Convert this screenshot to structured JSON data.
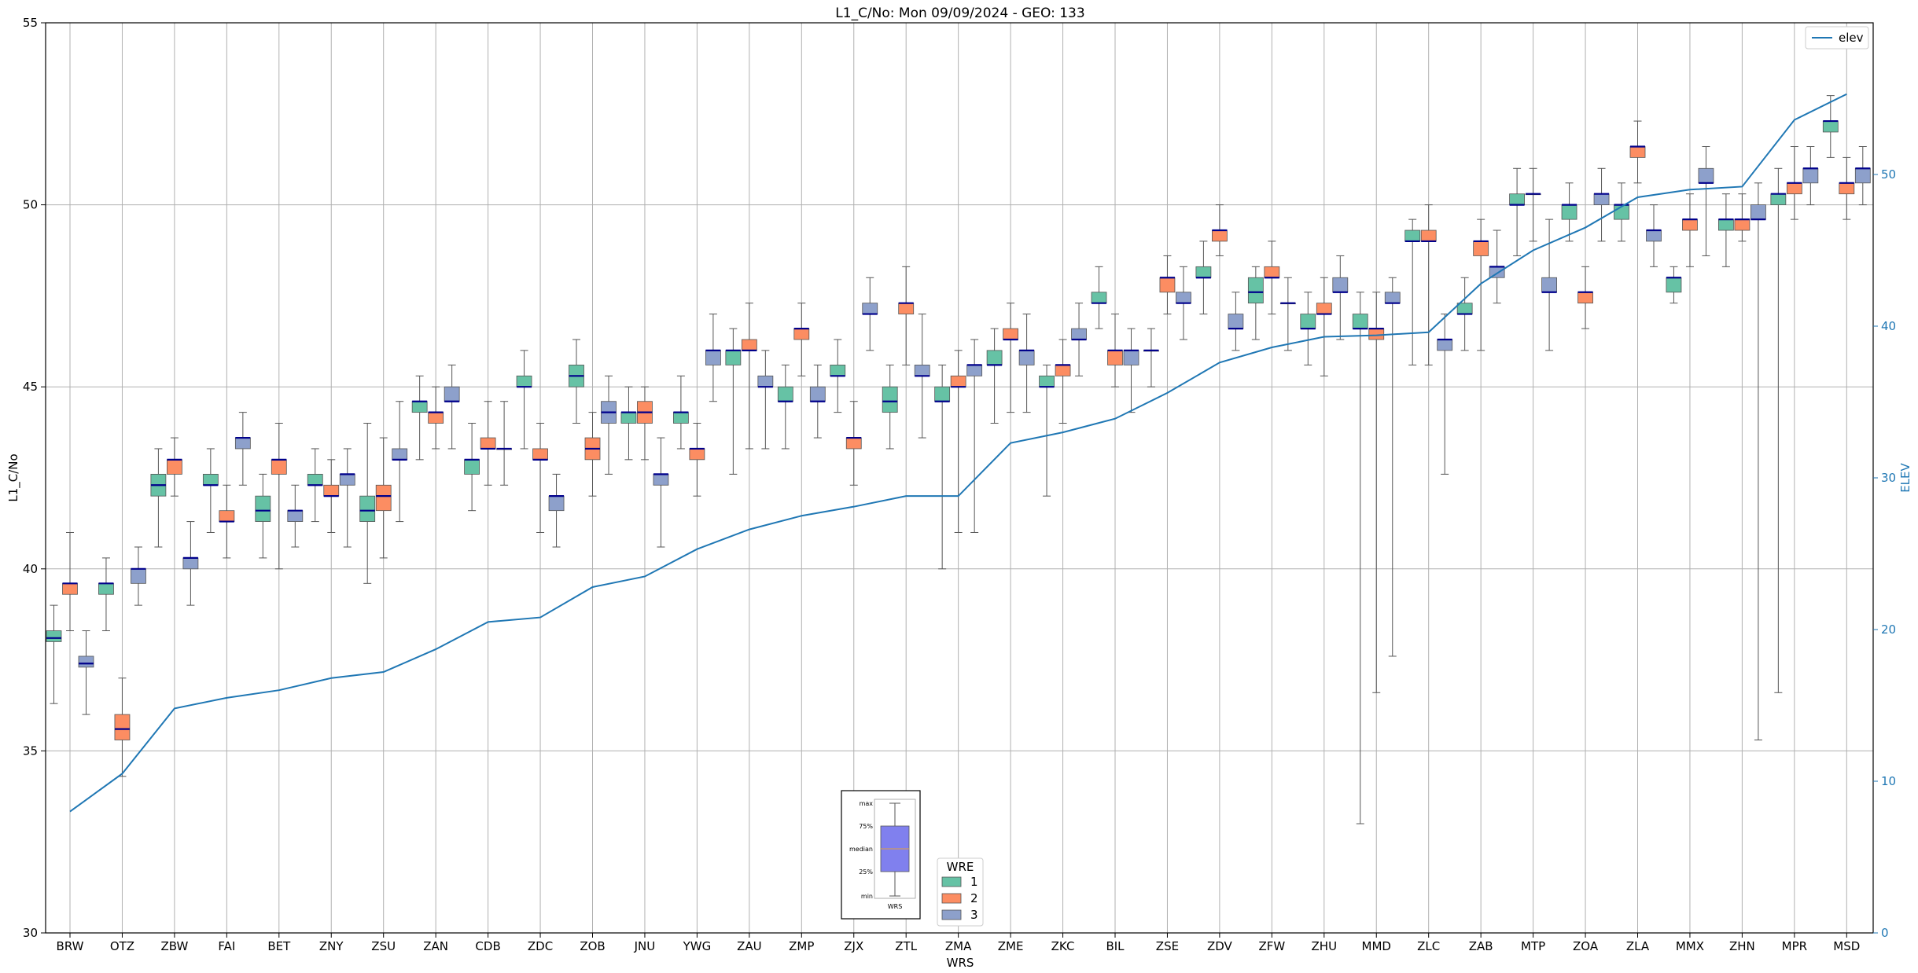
{
  "chart_data": {
    "type": "box",
    "title": "L1_C/No: Mon 09/09/2024 - GEO: 133",
    "xlabel": "WRS",
    "ylabel": "L1_C/No",
    "ylabel_right": "ELEV",
    "ylim": [
      30,
      55
    ],
    "ylim_right": [
      0,
      60
    ],
    "yticks": [
      "30",
      "35",
      "40",
      "45",
      "50",
      "55"
    ],
    "yticks_right": [
      "0",
      "10",
      "20",
      "30",
      "40",
      "50"
    ],
    "categories": [
      "BRW",
      "OTZ",
      "ZBW",
      "FAI",
      "BET",
      "ZNY",
      "ZSU",
      "ZAN",
      "CDB",
      "ZDC",
      "ZOB",
      "JNU",
      "YWG",
      "ZAU",
      "ZMP",
      "ZJX",
      "ZTL",
      "ZMA",
      "ZME",
      "ZKC",
      "BIL",
      "ZSE",
      "ZDV",
      "ZFW",
      "ZHU",
      "MMD",
      "ZLC",
      "ZAB",
      "MTP",
      "ZOA",
      "ZLA",
      "MMX",
      "ZHN",
      "MPR",
      "MSD"
    ],
    "colors": {
      "WRE 1": "#66c2a5",
      "WRE 2": "#fc8d62",
      "WRE 3": "#8da0cb",
      "median": "#00008b",
      "elev": "#1f77b4",
      "grid": "#b0b0b0",
      "whisker": "#555555"
    },
    "legend": {
      "title": "WRE",
      "entries": [
        "1",
        "2",
        "3"
      ],
      "placement": "bottom-center"
    },
    "elev_legend": {
      "label": "elev",
      "placement": "top-right"
    },
    "inset_key": {
      "labels": [
        "max",
        "75%",
        "median",
        "25%",
        "min"
      ],
      "xlabel": "WRS",
      "placement": "bottom-center"
    },
    "boxes": [
      {
        "station": "BRW",
        "wre": 1,
        "min": 36.3,
        "q1": 38.0,
        "median": 38.1,
        "q3": 38.3,
        "max": 39.0
      },
      {
        "station": "BRW",
        "wre": 2,
        "min": 38.3,
        "q1": 39.3,
        "median": 39.6,
        "q3": 39.6,
        "max": 41.0
      },
      {
        "station": "BRW",
        "wre": 3,
        "min": 36.0,
        "q1": 37.3,
        "median": 37.4,
        "q3": 37.6,
        "max": 38.3
      },
      {
        "station": "OTZ",
        "wre": 1,
        "min": 38.3,
        "q1": 39.3,
        "median": 39.6,
        "q3": 39.6,
        "max": 40.3
      },
      {
        "station": "OTZ",
        "wre": 2,
        "min": 34.3,
        "q1": 35.3,
        "median": 35.6,
        "q3": 36.0,
        "max": 37.0
      },
      {
        "station": "OTZ",
        "wre": 3,
        "min": 39.0,
        "q1": 39.6,
        "median": 40.0,
        "q3": 40.0,
        "max": 40.6
      },
      {
        "station": "ZBW",
        "wre": 1,
        "min": 40.6,
        "q1": 42.0,
        "median": 42.3,
        "q3": 42.6,
        "max": 43.3
      },
      {
        "station": "ZBW",
        "wre": 2,
        "min": 42.0,
        "q1": 42.6,
        "median": 43.0,
        "q3": 43.0,
        "max": 43.6
      },
      {
        "station": "ZBW",
        "wre": 3,
        "min": 39.0,
        "q1": 40.0,
        "median": 40.3,
        "q3": 40.3,
        "max": 41.3
      },
      {
        "station": "FAI",
        "wre": 1,
        "min": 41.0,
        "q1": 42.3,
        "median": 42.3,
        "q3": 42.6,
        "max": 43.3
      },
      {
        "station": "FAI",
        "wre": 2,
        "min": 40.3,
        "q1": 41.3,
        "median": 41.3,
        "q3": 41.6,
        "max": 42.3
      },
      {
        "station": "FAI",
        "wre": 3,
        "min": 42.3,
        "q1": 43.3,
        "median": 43.6,
        "q3": 43.6,
        "max": 44.3
      },
      {
        "station": "BET",
        "wre": 1,
        "min": 40.3,
        "q1": 41.3,
        "median": 41.6,
        "q3": 42.0,
        "max": 42.6
      },
      {
        "station": "BET",
        "wre": 2,
        "min": 40.0,
        "q1": 42.6,
        "median": 43.0,
        "q3": 43.0,
        "max": 44.0
      },
      {
        "station": "BET",
        "wre": 3,
        "min": 40.6,
        "q1": 41.3,
        "median": 41.6,
        "q3": 41.6,
        "max": 42.3
      },
      {
        "station": "ZNY",
        "wre": 1,
        "min": 41.3,
        "q1": 42.3,
        "median": 42.3,
        "q3": 42.6,
        "max": 43.3
      },
      {
        "station": "ZNY",
        "wre": 2,
        "min": 41.0,
        "q1": 42.0,
        "median": 42.0,
        "q3": 42.3,
        "max": 43.0
      },
      {
        "station": "ZNY",
        "wre": 3,
        "min": 40.6,
        "q1": 42.3,
        "median": 42.6,
        "q3": 42.6,
        "max": 43.3
      },
      {
        "station": "ZSU",
        "wre": 1,
        "min": 39.6,
        "q1": 41.3,
        "median": 41.6,
        "q3": 42.0,
        "max": 44.0
      },
      {
        "station": "ZSU",
        "wre": 2,
        "min": 40.3,
        "q1": 41.6,
        "median": 42.0,
        "q3": 42.3,
        "max": 43.6
      },
      {
        "station": "ZSU",
        "wre": 3,
        "min": 41.3,
        "q1": 43.0,
        "median": 43.0,
        "q3": 43.3,
        "max": 44.6
      },
      {
        "station": "ZAN",
        "wre": 1,
        "min": 43.0,
        "q1": 44.3,
        "median": 44.6,
        "q3": 44.6,
        "max": 45.3
      },
      {
        "station": "ZAN",
        "wre": 2,
        "min": 43.3,
        "q1": 44.0,
        "median": 44.3,
        "q3": 44.3,
        "max": 45.0
      },
      {
        "station": "ZAN",
        "wre": 3,
        "min": 43.3,
        "q1": 44.6,
        "median": 44.6,
        "q3": 45.0,
        "max": 45.6
      },
      {
        "station": "CDB",
        "wre": 1,
        "min": 41.6,
        "q1": 42.6,
        "median": 43.0,
        "q3": 43.0,
        "max": 44.0
      },
      {
        "station": "CDB",
        "wre": 2,
        "min": 42.3,
        "q1": 43.3,
        "median": 43.3,
        "q3": 43.6,
        "max": 44.6
      },
      {
        "station": "CDB",
        "wre": 3,
        "min": 42.3,
        "q1": 43.3,
        "median": 43.3,
        "q3": 43.3,
        "max": 44.6
      },
      {
        "station": "ZDC",
        "wre": 1,
        "min": 43.3,
        "q1": 45.0,
        "median": 45.0,
        "q3": 45.3,
        "max": 46.0
      },
      {
        "station": "ZDC",
        "wre": 2,
        "min": 41.0,
        "q1": 43.0,
        "median": 43.0,
        "q3": 43.3,
        "max": 44.0
      },
      {
        "station": "ZDC",
        "wre": 3,
        "min": 40.6,
        "q1": 41.6,
        "median": 42.0,
        "q3": 42.0,
        "max": 42.6
      },
      {
        "station": "ZOB",
        "wre": 1,
        "min": 44.0,
        "q1": 45.0,
        "median": 45.3,
        "q3": 45.6,
        "max": 46.3
      },
      {
        "station": "ZOB",
        "wre": 2,
        "min": 42.0,
        "q1": 43.0,
        "median": 43.3,
        "q3": 43.6,
        "max": 44.3
      },
      {
        "station": "ZOB",
        "wre": 3,
        "min": 42.6,
        "q1": 44.0,
        "median": 44.3,
        "q3": 44.6,
        "max": 45.3
      },
      {
        "station": "JNU",
        "wre": 1,
        "min": 43.0,
        "q1": 44.0,
        "median": 44.3,
        "q3": 44.3,
        "max": 45.0
      },
      {
        "station": "JNU",
        "wre": 2,
        "min": 43.0,
        "q1": 44.0,
        "median": 44.3,
        "q3": 44.6,
        "max": 45.0
      },
      {
        "station": "JNU",
        "wre": 3,
        "min": 40.6,
        "q1": 42.3,
        "median": 42.6,
        "q3": 42.6,
        "max": 43.6
      },
      {
        "station": "YWG",
        "wre": 1,
        "min": 43.3,
        "q1": 44.0,
        "median": 44.3,
        "q3": 44.3,
        "max": 45.3
      },
      {
        "station": "YWG",
        "wre": 2,
        "min": 42.0,
        "q1": 43.0,
        "median": 43.3,
        "q3": 43.3,
        "max": 44.0
      },
      {
        "station": "YWG",
        "wre": 3,
        "min": 44.6,
        "q1": 45.6,
        "median": 46.0,
        "q3": 46.0,
        "max": 47.0
      },
      {
        "station": "ZAU",
        "wre": 1,
        "min": 42.6,
        "q1": 45.6,
        "median": 46.0,
        "q3": 46.0,
        "max": 46.6
      },
      {
        "station": "ZAU",
        "wre": 2,
        "min": 43.3,
        "q1": 46.0,
        "median": 46.0,
        "q3": 46.3,
        "max": 47.3
      },
      {
        "station": "ZAU",
        "wre": 3,
        "min": 43.3,
        "q1": 45.0,
        "median": 45.0,
        "q3": 45.3,
        "max": 46.0
      },
      {
        "station": "ZMP",
        "wre": 1,
        "min": 43.3,
        "q1": 44.6,
        "median": 44.6,
        "q3": 45.0,
        "max": 45.6
      },
      {
        "station": "ZMP",
        "wre": 2,
        "min": 45.3,
        "q1": 46.3,
        "median": 46.6,
        "q3": 46.6,
        "max": 47.3
      },
      {
        "station": "ZMP",
        "wre": 3,
        "min": 43.6,
        "q1": 44.6,
        "median": 44.6,
        "q3": 45.0,
        "max": 45.6
      },
      {
        "station": "ZJX",
        "wre": 1,
        "min": 44.3,
        "q1": 45.3,
        "median": 45.3,
        "q3": 45.6,
        "max": 46.3
      },
      {
        "station": "ZJX",
        "wre": 2,
        "min": 42.3,
        "q1": 43.3,
        "median": 43.6,
        "q3": 43.6,
        "max": 44.6
      },
      {
        "station": "ZJX",
        "wre": 3,
        "min": 46.0,
        "q1": 47.0,
        "median": 47.0,
        "q3": 47.3,
        "max": 48.0
      },
      {
        "station": "ZTL",
        "wre": 1,
        "min": 43.3,
        "q1": 44.3,
        "median": 44.6,
        "q3": 45.0,
        "max": 45.6
      },
      {
        "station": "ZTL",
        "wre": 2,
        "min": 45.6,
        "q1": 47.0,
        "median": 47.3,
        "q3": 47.3,
        "max": 48.3
      },
      {
        "station": "ZTL",
        "wre": 3,
        "min": 43.6,
        "q1": 45.3,
        "median": 45.3,
        "q3": 45.6,
        "max": 47.0
      },
      {
        "station": "ZMA",
        "wre": 1,
        "min": 40.0,
        "q1": 44.6,
        "median": 44.6,
        "q3": 45.0,
        "max": 45.6
      },
      {
        "station": "ZMA",
        "wre": 2,
        "min": 41.0,
        "q1": 45.0,
        "median": 45.0,
        "q3": 45.3,
        "max": 46.0
      },
      {
        "station": "ZMA",
        "wre": 3,
        "min": 41.0,
        "q1": 45.3,
        "median": 45.6,
        "q3": 45.6,
        "max": 46.3
      },
      {
        "station": "ZME",
        "wre": 1,
        "min": 44.0,
        "q1": 45.6,
        "median": 45.6,
        "q3": 46.0,
        "max": 46.6
      },
      {
        "station": "ZME",
        "wre": 2,
        "min": 44.3,
        "q1": 46.3,
        "median": 46.3,
        "q3": 46.6,
        "max": 47.3
      },
      {
        "station": "ZME",
        "wre": 3,
        "min": 44.3,
        "q1": 45.6,
        "median": 46.0,
        "q3": 46.0,
        "max": 47.0
      },
      {
        "station": "ZKC",
        "wre": 1,
        "min": 42.0,
        "q1": 45.0,
        "median": 45.0,
        "q3": 45.3,
        "max": 45.6
      },
      {
        "station": "ZKC",
        "wre": 2,
        "min": 44.0,
        "q1": 45.3,
        "median": 45.6,
        "q3": 45.6,
        "max": 46.3
      },
      {
        "station": "ZKC",
        "wre": 3,
        "min": 45.3,
        "q1": 46.3,
        "median": 46.3,
        "q3": 46.6,
        "max": 47.3
      },
      {
        "station": "BIL",
        "wre": 1,
        "min": 46.6,
        "q1": 47.3,
        "median": 47.3,
        "q3": 47.6,
        "max": 48.3
      },
      {
        "station": "BIL",
        "wre": 2,
        "min": 45.0,
        "q1": 45.6,
        "median": 46.0,
        "q3": 46.0,
        "max": 47.0
      },
      {
        "station": "BIL",
        "wre": 3,
        "min": 44.3,
        "q1": 45.6,
        "median": 46.0,
        "q3": 46.0,
        "max": 46.6
      },
      {
        "station": "ZSE",
        "wre": 1,
        "min": 45.0,
        "q1": 46.0,
        "median": 46.0,
        "q3": 46.0,
        "max": 46.6
      },
      {
        "station": "ZSE",
        "wre": 2,
        "min": 47.0,
        "q1": 47.6,
        "median": 48.0,
        "q3": 48.0,
        "max": 48.6
      },
      {
        "station": "ZSE",
        "wre": 3,
        "min": 46.3,
        "q1": 47.3,
        "median": 47.3,
        "q3": 47.6,
        "max": 48.3
      },
      {
        "station": "ZDV",
        "wre": 1,
        "min": 47.0,
        "q1": 48.0,
        "median": 48.0,
        "q3": 48.3,
        "max": 49.0
      },
      {
        "station": "ZDV",
        "wre": 2,
        "min": 48.6,
        "q1": 49.0,
        "median": 49.3,
        "q3": 49.3,
        "max": 50.0
      },
      {
        "station": "ZDV",
        "wre": 3,
        "min": 46.0,
        "q1": 46.6,
        "median": 46.6,
        "q3": 47.0,
        "max": 47.6
      },
      {
        "station": "ZFW",
        "wre": 1,
        "min": 46.3,
        "q1": 47.3,
        "median": 47.6,
        "q3": 48.0,
        "max": 48.3
      },
      {
        "station": "ZFW",
        "wre": 2,
        "min": 47.0,
        "q1": 48.0,
        "median": 48.0,
        "q3": 48.3,
        "max": 49.0
      },
      {
        "station": "ZFW",
        "wre": 3,
        "min": 46.0,
        "q1": 47.3,
        "median": 47.3,
        "q3": 47.3,
        "max": 48.0
      },
      {
        "station": "ZHU",
        "wre": 1,
        "min": 45.6,
        "q1": 46.6,
        "median": 46.6,
        "q3": 47.0,
        "max": 47.6
      },
      {
        "station": "ZHU",
        "wre": 2,
        "min": 45.3,
        "q1": 47.0,
        "median": 47.0,
        "q3": 47.3,
        "max": 48.0
      },
      {
        "station": "ZHU",
        "wre": 3,
        "min": 46.3,
        "q1": 47.6,
        "median": 47.6,
        "q3": 48.0,
        "max": 48.6
      },
      {
        "station": "MMD",
        "wre": 1,
        "min": 33.0,
        "q1": 46.6,
        "median": 46.6,
        "q3": 47.0,
        "max": 47.6
      },
      {
        "station": "MMD",
        "wre": 2,
        "min": 36.6,
        "q1": 46.3,
        "median": 46.6,
        "q3": 46.6,
        "max": 47.6
      },
      {
        "station": "MMD",
        "wre": 3,
        "min": 37.6,
        "q1": 47.3,
        "median": 47.3,
        "q3": 47.6,
        "max": 48.0
      },
      {
        "station": "ZLC",
        "wre": 1,
        "min": 45.6,
        "q1": 49.0,
        "median": 49.0,
        "q3": 49.3,
        "max": 49.6
      },
      {
        "station": "ZLC",
        "wre": 2,
        "min": 45.6,
        "q1": 49.0,
        "median": 49.0,
        "q3": 49.3,
        "max": 50.0
      },
      {
        "station": "ZLC",
        "wre": 3,
        "min": 42.6,
        "q1": 46.0,
        "median": 46.3,
        "q3": 46.3,
        "max": 47.0
      },
      {
        "station": "ZAB",
        "wre": 1,
        "min": 46.0,
        "q1": 47.0,
        "median": 47.0,
        "q3": 47.3,
        "max": 48.0
      },
      {
        "station": "ZAB",
        "wre": 2,
        "min": 46.0,
        "q1": 48.6,
        "median": 49.0,
        "q3": 49.0,
        "max": 49.6
      },
      {
        "station": "ZAB",
        "wre": 3,
        "min": 47.3,
        "q1": 48.0,
        "median": 48.3,
        "q3": 48.3,
        "max": 49.3
      },
      {
        "station": "MTP",
        "wre": 1,
        "min": 48.6,
        "q1": 50.0,
        "median": 50.0,
        "q3": 50.3,
        "max": 51.0
      },
      {
        "station": "MTP",
        "wre": 2,
        "min": 49.0,
        "q1": 50.3,
        "median": 50.3,
        "q3": 50.3,
        "max": 51.0
      },
      {
        "station": "MTP",
        "wre": 3,
        "min": 46.0,
        "q1": 47.6,
        "median": 47.6,
        "q3": 48.0,
        "max": 49.6
      },
      {
        "station": "ZOA",
        "wre": 1,
        "min": 49.0,
        "q1": 49.6,
        "median": 50.0,
        "q3": 50.0,
        "max": 50.6
      },
      {
        "station": "ZOA",
        "wre": 2,
        "min": 46.6,
        "q1": 47.3,
        "median": 47.6,
        "q3": 47.6,
        "max": 48.3
      },
      {
        "station": "ZOA",
        "wre": 3,
        "min": 49.0,
        "q1": 50.0,
        "median": 50.3,
        "q3": 50.3,
        "max": 51.0
      },
      {
        "station": "ZLA",
        "wre": 1,
        "min": 49.0,
        "q1": 49.6,
        "median": 50.0,
        "q3": 50.0,
        "max": 50.6
      },
      {
        "station": "ZLA",
        "wre": 2,
        "min": 50.6,
        "q1": 51.3,
        "median": 51.6,
        "q3": 51.6,
        "max": 52.3
      },
      {
        "station": "ZLA",
        "wre": 3,
        "min": 48.3,
        "q1": 49.0,
        "median": 49.3,
        "q3": 49.3,
        "max": 50.0
      },
      {
        "station": "MMX",
        "wre": 1,
        "min": 47.3,
        "q1": 47.6,
        "median": 48.0,
        "q3": 48.0,
        "max": 48.3
      },
      {
        "station": "MMX",
        "wre": 2,
        "min": 48.3,
        "q1": 49.3,
        "median": 49.6,
        "q3": 49.6,
        "max": 50.3
      },
      {
        "station": "MMX",
        "wre": 3,
        "min": 48.6,
        "q1": 50.6,
        "median": 50.6,
        "q3": 51.0,
        "max": 51.6
      },
      {
        "station": "ZHN",
        "wre": 1,
        "min": 48.3,
        "q1": 49.3,
        "median": 49.6,
        "q3": 49.6,
        "max": 50.3
      },
      {
        "station": "ZHN",
        "wre": 2,
        "min": 49.0,
        "q1": 49.3,
        "median": 49.6,
        "q3": 49.6,
        "max": 50.3
      },
      {
        "station": "ZHN",
        "wre": 3,
        "min": 35.3,
        "q1": 49.6,
        "median": 49.6,
        "q3": 50.0,
        "max": 50.6
      },
      {
        "station": "MPR",
        "wre": 1,
        "min": 36.6,
        "q1": 50.0,
        "median": 50.3,
        "q3": 50.3,
        "max": 51.0
      },
      {
        "station": "MPR",
        "wre": 2,
        "min": 49.6,
        "q1": 50.3,
        "median": 50.6,
        "q3": 50.6,
        "max": 51.6
      },
      {
        "station": "MPR",
        "wre": 3,
        "min": 50.0,
        "q1": 50.6,
        "median": 51.0,
        "q3": 51.0,
        "max": 51.6
      },
      {
        "station": "MSD",
        "wre": 1,
        "min": 51.3,
        "q1": 52.0,
        "median": 52.3,
        "q3": 52.3,
        "max": 53.0
      },
      {
        "station": "MSD",
        "wre": 2,
        "min": 49.6,
        "q1": 50.3,
        "median": 50.6,
        "q3": 50.6,
        "max": 51.3
      },
      {
        "station": "MSD",
        "wre": 3,
        "min": 50.0,
        "q1": 50.6,
        "median": 51.0,
        "q3": 51.0,
        "max": 51.6
      }
    ],
    "elev_series": {
      "name": "elev",
      "values": [
        8.0,
        10.5,
        14.8,
        15.5,
        16.0,
        16.8,
        17.2,
        18.7,
        20.5,
        20.8,
        22.8,
        23.5,
        25.3,
        26.6,
        27.5,
        28.1,
        28.8,
        28.8,
        32.3,
        33.0,
        33.9,
        35.6,
        37.6,
        38.6,
        39.3,
        39.4,
        39.6,
        42.8,
        45.0,
        46.5,
        48.5,
        49.0,
        49.2,
        53.6,
        55.3
      ]
    }
  }
}
